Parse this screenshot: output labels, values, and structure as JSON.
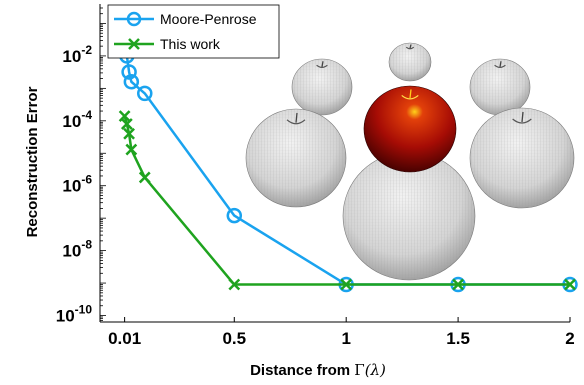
{
  "chart_data": {
    "type": "line",
    "xlabel": "Distance from Γ (λ)",
    "xlabel_parts": {
      "prefix": "Distance from ",
      "gamma": "Γ",
      "lambda": "(λ)"
    },
    "ylabel": "Reconstruction Error",
    "xlim": [
      -0.1,
      2.0
    ],
    "ylim_log10": [
      -10.2,
      -0.4
    ],
    "yscale": "log",
    "grid": false,
    "legend_position": "top-left",
    "x_ticks": [
      0.01,
      0.5,
      1,
      1.5,
      2
    ],
    "x_tick_labels": [
      "0.01",
      "0.5",
      "1",
      "1.5",
      "2"
    ],
    "y_ticks_log10": [
      -10,
      -8,
      -6,
      -4,
      -2
    ],
    "y_tick_labels": [
      {
        "base": "10",
        "exp": "-10"
      },
      {
        "base": "10",
        "exp": "-8"
      },
      {
        "base": "10",
        "exp": "-6"
      },
      {
        "base": "10",
        "exp": "-4"
      },
      {
        "base": "10",
        "exp": "-2"
      }
    ],
    "series": [
      {
        "name": "Moore-Penrose",
        "color": "#1aa3ef",
        "marker": "circle",
        "x": [
          0.01,
          0.02,
          0.03,
          0.04,
          0.1,
          0.5,
          1,
          1.5,
          2
        ],
        "y": [
          0.025,
          0.01,
          0.0032,
          0.0016,
          0.0007,
          1.2e-07,
          9e-10,
          9e-10,
          9e-10
        ]
      },
      {
        "name": "This work",
        "color": "#1fa31f",
        "marker": "x",
        "x": [
          0.01,
          0.02,
          0.03,
          0.04,
          0.1,
          0.5,
          1,
          1.5,
          2
        ],
        "y": [
          0.00014,
          8e-05,
          4e-05,
          1.3e-05,
          1.8e-06,
          9e-10,
          9e-10,
          9e-10,
          9e-10
        ]
      }
    ]
  },
  "inset": {
    "object": "apple-sphere-array",
    "center_color": "#b00000",
    "surround_color": "#d9d9d9"
  }
}
